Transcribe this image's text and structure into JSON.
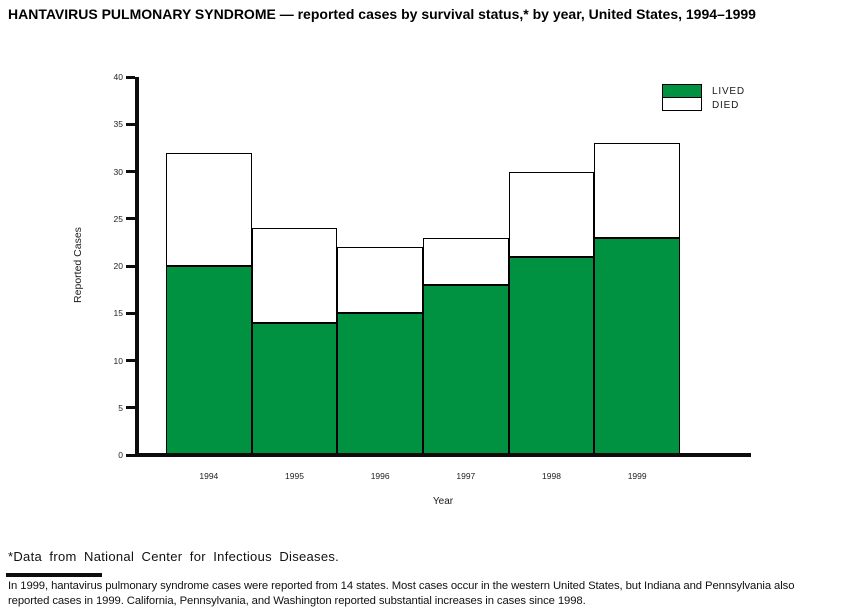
{
  "chart_data": {
    "type": "bar",
    "stacked": true,
    "title": "HANTAVIRUS PULMONARY SYNDROME — reported cases by survival status,* by year, United States, 1994–1999",
    "categories": [
      "1994",
      "1995",
      "1996",
      "1997",
      "1998",
      "1999"
    ],
    "series": [
      {
        "name": "LIVED",
        "color": "#009240",
        "values": [
          20,
          14,
          15,
          18,
          21,
          23
        ]
      },
      {
        "name": "DIED",
        "color": "#ffffff",
        "values": [
          12,
          10,
          7,
          5,
          9,
          10
        ]
      }
    ],
    "stack_totals": [
      32,
      24,
      22,
      23,
      30,
      33
    ],
    "xlabel": "Year",
    "ylabel": "Reported Cases",
    "ylim": [
      0,
      40
    ],
    "yticks": [
      0,
      5,
      10,
      15,
      20,
      25,
      30,
      35,
      40
    ],
    "legend_position": "top-right",
    "grid": false,
    "axis_color": "#0d0d0d"
  },
  "footer": {
    "source_note": "*Data from National Center for Infectious Diseases.",
    "note_lines": [
      "In 1999, hantavirus pulmonary syndrome cases were reported from 14 states. Most cases occur in the western United States, but Indiana and Pennsylvania also",
      "reported cases in 1999. California, Pennsylvania, and Washington reported substantial increases in cases since 1998."
    ]
  }
}
